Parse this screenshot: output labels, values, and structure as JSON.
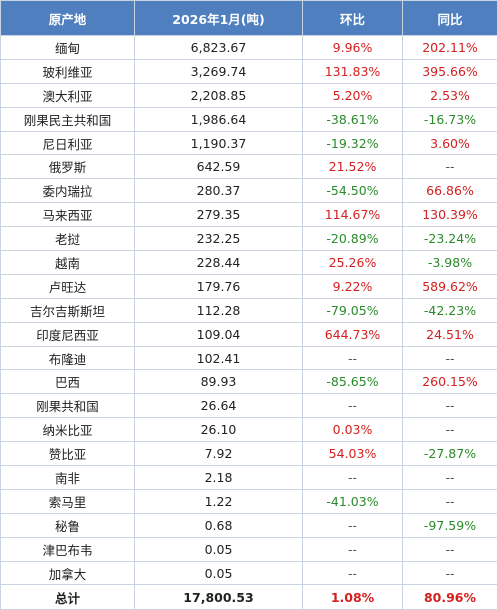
{
  "headers": [
    "原产地",
    "2026年1月(吨)",
    "环比",
    "同比"
  ],
  "rows": [
    {
      "origin": "缅甸",
      "tons": "6,823.67",
      "mom": "9.96%",
      "mom_c": "red",
      "yoy": "202.11%",
      "yoy_c": "red"
    },
    {
      "origin": "玻利维亚",
      "tons": "3,269.74",
      "mom": "131.83%",
      "mom_c": "red",
      "yoy": "395.66%",
      "yoy_c": "red"
    },
    {
      "origin": "澳大利亚",
      "tons": "2,208.85",
      "mom": "5.20%",
      "mom_c": "red",
      "yoy": "2.53%",
      "yoy_c": "red"
    },
    {
      "origin": "刚果民主共和国",
      "tons": "1,986.64",
      "mom": "-38.61%",
      "mom_c": "green",
      "yoy": "-16.73%",
      "yoy_c": "green"
    },
    {
      "origin": "尼日利亚",
      "tons": "1,190.37",
      "mom": "-19.32%",
      "mom_c": "green",
      "yoy": "3.60%",
      "yoy_c": "red"
    },
    {
      "origin": "俄罗斯",
      "tons": "642.59",
      "mom": "21.52%",
      "mom_c": "red",
      "yoy": "--",
      "yoy_c": "dash"
    },
    {
      "origin": "委内瑞拉",
      "tons": "280.37",
      "mom": "-54.50%",
      "mom_c": "green",
      "yoy": "66.86%",
      "yoy_c": "red"
    },
    {
      "origin": "马来西亚",
      "tons": "279.35",
      "mom": "114.67%",
      "mom_c": "red",
      "yoy": "130.39%",
      "yoy_c": "red"
    },
    {
      "origin": "老挝",
      "tons": "232.25",
      "mom": "-20.89%",
      "mom_c": "green",
      "yoy": "-23.24%",
      "yoy_c": "green"
    },
    {
      "origin": "越南",
      "tons": "228.44",
      "mom": "25.26%",
      "mom_c": "red",
      "yoy": "-3.98%",
      "yoy_c": "green"
    },
    {
      "origin": "卢旺达",
      "tons": "179.76",
      "mom": "9.22%",
      "mom_c": "red",
      "yoy": "589.62%",
      "yoy_c": "red"
    },
    {
      "origin": "吉尔吉斯斯坦",
      "tons": "112.28",
      "mom": "-79.05%",
      "mom_c": "green",
      "yoy": "-42.23%",
      "yoy_c": "green"
    },
    {
      "origin": "印度尼西亚",
      "tons": "109.04",
      "mom": "644.73%",
      "mom_c": "red",
      "yoy": "24.51%",
      "yoy_c": "red"
    },
    {
      "origin": "布隆迪",
      "tons": "102.41",
      "mom": "--",
      "mom_c": "dash",
      "yoy": "--",
      "yoy_c": "dash"
    },
    {
      "origin": "巴西",
      "tons": "89.93",
      "mom": "-85.65%",
      "mom_c": "green",
      "yoy": "260.15%",
      "yoy_c": "red"
    },
    {
      "origin": "刚果共和国",
      "tons": "26.64",
      "mom": "--",
      "mom_c": "dash",
      "yoy": "--",
      "yoy_c": "dash"
    },
    {
      "origin": "纳米比亚",
      "tons": "26.10",
      "mom": "0.03%",
      "mom_c": "red",
      "yoy": "--",
      "yoy_c": "dash"
    },
    {
      "origin": "赞比亚",
      "tons": "7.92",
      "mom": "54.03%",
      "mom_c": "red",
      "yoy": "-27.87%",
      "yoy_c": "green"
    },
    {
      "origin": "南非",
      "tons": "2.18",
      "mom": "--",
      "mom_c": "dash",
      "yoy": "--",
      "yoy_c": "dash"
    },
    {
      "origin": "索马里",
      "tons": "1.22",
      "mom": "-41.03%",
      "mom_c": "green",
      "yoy": "--",
      "yoy_c": "dash"
    },
    {
      "origin": "秘鲁",
      "tons": "0.68",
      "mom": "--",
      "mom_c": "dash",
      "yoy": "-97.59%",
      "yoy_c": "green"
    },
    {
      "origin": "津巴布韦",
      "tons": "0.05",
      "mom": "--",
      "mom_c": "dash",
      "yoy": "--",
      "yoy_c": "dash"
    },
    {
      "origin": "加拿大",
      "tons": "0.05",
      "mom": "--",
      "mom_c": "dash",
      "yoy": "--",
      "yoy_c": "dash"
    }
  ],
  "total": {
    "origin": "总计",
    "tons": "17,800.53",
    "mom": "1.08%",
    "mom_c": "red",
    "yoy": "80.96%",
    "yoy_c": "red"
  },
  "colors": {
    "header_bg": "#4f7fbf",
    "positive": "#d42020",
    "negative": "#2b8a2b"
  }
}
